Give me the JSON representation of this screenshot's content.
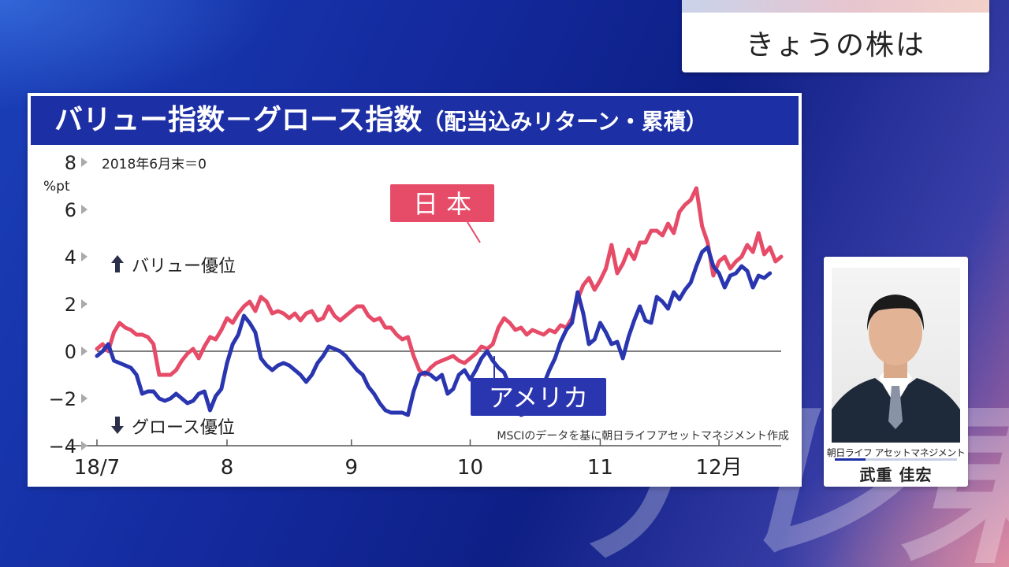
{
  "program": {
    "corner_title": "きょうの株は",
    "watermark": "テレ東"
  },
  "profile": {
    "company": "朝日ライフ アセットマネジメント",
    "name": "武重 佳宏"
  },
  "chart_data": {
    "type": "line",
    "title": "バリュー指数－グロース指数",
    "subtitle": "（配当込みリターン・累積）",
    "ylabel": "%pt",
    "baseline_note": "2018年6月末＝0",
    "ylim": [
      -4,
      8
    ],
    "yticks": [
      8,
      6,
      4,
      2,
      0,
      -2,
      -4
    ],
    "ytick_labels": [
      "8",
      "6",
      "4",
      "2",
      "0",
      "−2",
      "−4"
    ],
    "xlim": [
      0,
      121
    ],
    "xticks": [
      {
        "x": 0,
        "label": "18/7"
      },
      {
        "x": 23,
        "label": "8"
      },
      {
        "x": 45,
        "label": "9"
      },
      {
        "x": 66,
        "label": "10"
      },
      {
        "x": 89,
        "label": "11"
      },
      {
        "x": 110,
        "label": "12月"
      }
    ],
    "annotations": {
      "value_up": "バリュー優位",
      "growth_down": "グロース優位",
      "source": "MSCIのデータを基に朝日ライフアセットマネジメント作成"
    },
    "zero_line": true,
    "colors": {
      "japan": "#e64b68",
      "usa": "#2a35b0",
      "title_bg": "#1c2fa5"
    },
    "series": [
      {
        "name": "日 本",
        "color": "#e64b68",
        "values": [
          0.1,
          0.3,
          0.0,
          0.8,
          1.2,
          1.0,
          0.9,
          0.7,
          0.7,
          0.6,
          0.3,
          -1.0,
          -1.0,
          -1.0,
          -0.8,
          -0.4,
          -0.1,
          0.1,
          -0.3,
          0.2,
          0.6,
          0.5,
          0.9,
          1.4,
          1.2,
          1.6,
          1.9,
          2.1,
          1.7,
          2.3,
          2.1,
          1.6,
          1.7,
          1.6,
          1.4,
          1.6,
          1.3,
          1.6,
          1.7,
          1.3,
          1.4,
          1.9,
          1.5,
          1.3,
          1.5,
          1.7,
          1.9,
          1.9,
          1.5,
          1.3,
          1.4,
          1.0,
          1.0,
          0.7,
          0.5,
          0.6,
          -0.2,
          -0.8,
          -1.0,
          -0.7,
          -0.5,
          -0.4,
          -0.3,
          -0.2,
          -0.4,
          -0.5,
          -0.3,
          -0.1,
          0.2,
          0.1,
          0.3,
          1.0,
          1.4,
          1.2,
          0.9,
          1.0,
          0.7,
          0.9,
          0.8,
          0.7,
          0.9,
          0.8,
          1.1,
          1.0,
          1.4,
          2.2,
          2.8,
          3.1,
          2.6,
          3.0,
          3.5,
          4.5,
          3.3,
          3.7,
          4.3,
          3.9,
          4.6,
          4.6,
          5.1,
          5.1,
          4.9,
          5.4,
          5.0,
          5.9,
          6.2,
          6.4,
          6.9,
          5.3,
          4.6,
          3.2,
          3.8,
          4.0,
          3.5,
          3.8,
          4.0,
          4.5,
          4.2,
          5.0,
          4.1,
          4.4,
          3.8,
          4.0
        ]
      },
      {
        "name": "アメリカ",
        "color": "#2a35b0",
        "values": [
          -0.2,
          0.0,
          0.3,
          -0.4,
          -0.5,
          -0.6,
          -0.7,
          -1.0,
          -1.8,
          -1.7,
          -1.7,
          -2.0,
          -2.1,
          -2.0,
          -1.8,
          -2.0,
          -2.2,
          -2.1,
          -1.8,
          -1.7,
          -2.5,
          -1.9,
          -1.6,
          -0.5,
          0.3,
          0.7,
          1.5,
          1.2,
          0.8,
          -0.3,
          -0.6,
          -0.8,
          -0.6,
          -0.5,
          -0.6,
          -0.8,
          -1.0,
          -1.3,
          -1.0,
          -0.5,
          -0.2,
          0.2,
          0.1,
          0.0,
          -0.2,
          -0.5,
          -0.8,
          -1.0,
          -1.5,
          -1.8,
          -2.2,
          -2.5,
          -2.6,
          -2.6,
          -2.6,
          -2.7,
          -1.7,
          -1.0,
          -0.9,
          -1.0,
          -1.2,
          -1.0,
          -1.8,
          -1.6,
          -1.0,
          -0.8,
          -1.2,
          -0.8,
          -0.3,
          0.0,
          -0.4,
          -0.7,
          -0.9,
          -1.5,
          -2.4,
          -2.7,
          -2.6,
          -2.4,
          -2.5,
          -1.4,
          -0.8,
          -0.3,
          0.4,
          0.9,
          1.2,
          2.5,
          1.6,
          0.3,
          0.5,
          1.2,
          0.8,
          0.3,
          0.4,
          -0.3,
          0.6,
          1.3,
          1.9,
          1.3,
          1.2,
          2.3,
          2.1,
          1.8,
          2.5,
          2.2,
          2.6,
          2.9,
          3.6,
          4.2,
          4.4,
          3.6,
          3.3,
          2.7,
          3.2,
          3.3,
          3.6,
          3.4,
          2.7,
          3.2,
          3.1,
          3.3
        ]
      }
    ],
    "label_boxes": [
      {
        "text": "日 本",
        "series": 0
      },
      {
        "text": "アメリカ",
        "series": 1
      }
    ]
  }
}
